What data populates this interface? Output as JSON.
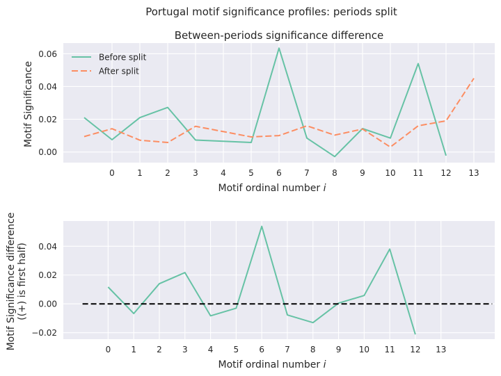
{
  "figure": {
    "suptitle": "Portugal motif significance profiles: periods split"
  },
  "chart_data": [
    {
      "type": "line",
      "title": "Between-periods significance difference",
      "xlabel": "Motif ordinal number",
      "xlabel_italic": "i",
      "ylabel": "Motif Significance",
      "xticks": [
        0,
        1,
        2,
        3,
        4,
        5,
        6,
        7,
        8,
        9,
        10,
        11,
        12,
        13
      ],
      "yticks": [
        0.0,
        0.02,
        0.04,
        0.06
      ],
      "ytick_labels": [
        "0.00",
        "0.02",
        "0.04",
        "0.06"
      ],
      "xlim": [
        -1.75,
        13.75
      ],
      "ylim": [
        -0.0065,
        0.0665
      ],
      "grid": true,
      "legend": "top-left",
      "series": [
        {
          "name": "Before split",
          "style": "solid",
          "color": "#66c2a5",
          "x": [
            -1,
            0,
            1,
            2,
            3,
            5,
            6,
            7,
            8,
            9,
            10,
            11,
            12
          ],
          "y": [
            0.021,
            0.0075,
            0.021,
            0.0272,
            0.0073,
            0.0058,
            0.0634,
            0.0085,
            -0.0028,
            0.0143,
            0.0085,
            0.054,
            -0.0022
          ]
        },
        {
          "name": "After split",
          "style": "dashed",
          "color": "#fc8d62",
          "x": [
            -1,
            0,
            1,
            2,
            3,
            5,
            6,
            7,
            8,
            9,
            10,
            11,
            12,
            13
          ],
          "y": [
            0.0094,
            0.0142,
            0.0072,
            0.0058,
            0.0157,
            0.0092,
            0.01,
            0.016,
            0.0103,
            0.014,
            0.003,
            0.016,
            0.019,
            0.045
          ]
        }
      ]
    },
    {
      "type": "line",
      "title": "",
      "xlabel": "Motif ordinal number",
      "xlabel_italic": "i",
      "ylabel": "Motif Significance difference",
      "ylabel2": "((+) is first half)",
      "xticks": [
        0,
        1,
        2,
        3,
        4,
        5,
        6,
        7,
        8,
        9,
        10,
        11,
        12,
        13
      ],
      "yticks": [
        -0.02,
        0.0,
        0.02,
        0.04
      ],
      "ytick_labels": [
        "−0.02",
        "0.00",
        "0.02",
        "0.04"
      ],
      "xlim": [
        -1.75,
        15.1
      ],
      "ylim": [
        -0.0245,
        0.0575
      ],
      "grid": true,
      "series": [
        {
          "style": "solid",
          "color": "#66c2a5",
          "x": [
            0,
            1,
            2,
            3,
            4,
            5,
            6,
            7,
            8,
            9,
            10,
            11,
            12
          ],
          "y": [
            0.0117,
            -0.0067,
            0.014,
            0.0217,
            -0.0083,
            -0.003,
            0.0538,
            -0.0077,
            -0.013,
            0.0005,
            0.0058,
            0.038,
            -0.0212
          ]
        },
        {
          "style": "dashed",
          "color": "#000000",
          "x": [
            -1,
            15
          ],
          "y": [
            0,
            0
          ]
        }
      ]
    }
  ]
}
